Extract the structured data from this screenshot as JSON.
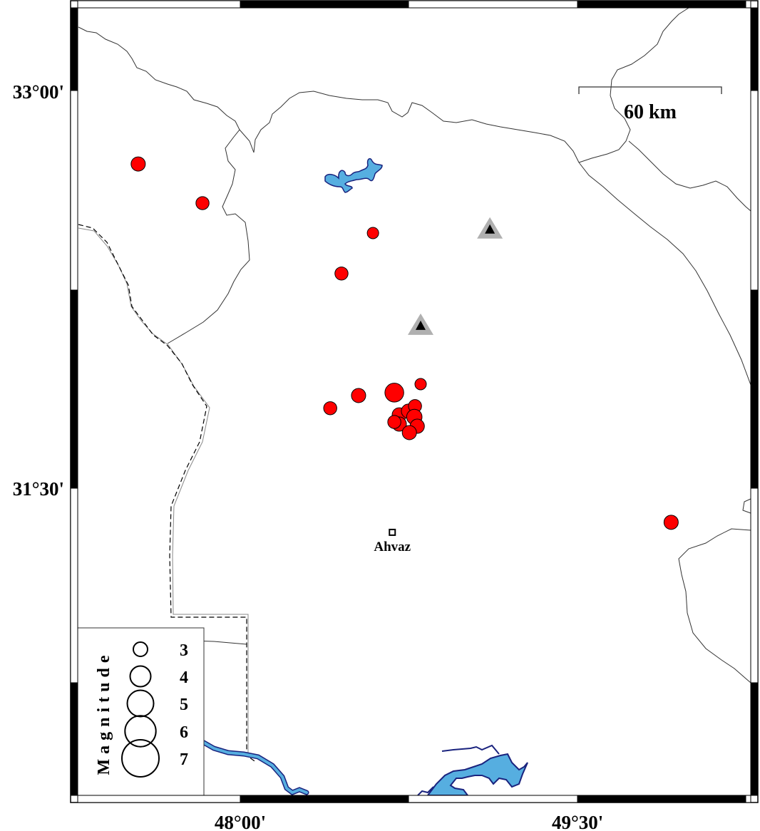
{
  "map": {
    "lon_range": [
      47.277,
      50.27
    ],
    "lat_range": [
      30.339,
      33.315
    ],
    "colors": {
      "event_fill": "#ff0000",
      "event_stroke": "#000000",
      "water_fill": "#56aee0",
      "water_stroke": "#1a237e",
      "station_outer": "#b0b0b0",
      "station_inner": "#000000",
      "frame": "#000000"
    }
  },
  "axes": {
    "y_ticks": [
      {
        "value": 33.0,
        "label": "33°00'"
      },
      {
        "value": 31.5,
        "label": "31°30'"
      }
    ],
    "x_ticks": [
      {
        "value": 48.0,
        "label": "48°00'"
      },
      {
        "value": 49.5,
        "label": "49°30'"
      }
    ]
  },
  "scale_bar": {
    "label": "60 km"
  },
  "city": {
    "name": "Ahvaz",
    "lon": 48.676,
    "lat": 31.333,
    "icon": "square-marker-icon"
  },
  "stations": [
    {
      "lon": 49.11,
      "lat": 32.478,
      "icon": "triangle-icon"
    },
    {
      "lon": 48.802,
      "lat": 32.114,
      "icon": "triangle-icon"
    }
  ],
  "events": [
    {
      "lon": 47.546,
      "lat": 32.725,
      "mag": 3.0
    },
    {
      "lon": 47.832,
      "lat": 32.577,
      "mag": 2.8
    },
    {
      "lon": 48.59,
      "lat": 32.464,
      "mag": 2.5
    },
    {
      "lon": 48.45,
      "lat": 32.311,
      "mag": 2.8
    },
    {
      "lon": 48.802,
      "lat": 31.893,
      "mag": 2.5
    },
    {
      "lon": 48.685,
      "lat": 31.861,
      "mag": 3.8
    },
    {
      "lon": 48.526,
      "lat": 31.85,
      "mag": 3.0
    },
    {
      "lon": 48.4,
      "lat": 31.802,
      "mag": 2.8
    },
    {
      "lon": 48.707,
      "lat": 31.777,
      "mag": 3.0
    },
    {
      "lon": 48.748,
      "lat": 31.791,
      "mag": 3.0
    },
    {
      "lon": 48.777,
      "lat": 31.81,
      "mag": 2.8
    },
    {
      "lon": 48.774,
      "lat": 31.769,
      "mag": 3.2
    },
    {
      "lon": 48.787,
      "lat": 31.734,
      "mag": 3.0
    },
    {
      "lon": 48.707,
      "lat": 31.742,
      "mag": 3.0
    },
    {
      "lon": 48.685,
      "lat": 31.75,
      "mag": 2.8
    },
    {
      "lon": 48.752,
      "lat": 31.71,
      "mag": 3.0
    },
    {
      "lon": 49.916,
      "lat": 31.371,
      "mag": 3.0
    }
  ],
  "legend": {
    "title": "Magnitude",
    "items": [
      {
        "mag": 3,
        "label": "3"
      },
      {
        "mag": 4,
        "label": "4"
      },
      {
        "mag": 5,
        "label": "5"
      },
      {
        "mag": 6,
        "label": "6"
      },
      {
        "mag": 7,
        "label": "7"
      }
    ]
  }
}
